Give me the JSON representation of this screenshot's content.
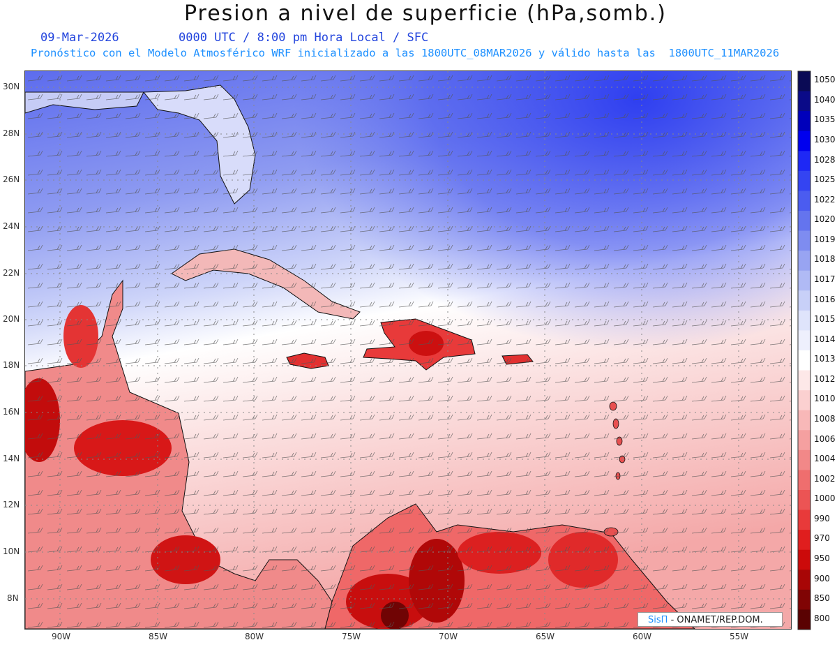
{
  "title": "Presion a nivel de superficie (hPa,somb.)",
  "header": {
    "date": "09-Mar-2026",
    "time_info": "0000 UTC / 8:00 pm Hora Local / SFC",
    "forecast_info": "Pronóstico con el Modelo Atmosférico WRF inicializado a las 1800UTC_08MAR2026 y válido hasta las  1800UTC_11MAR2026"
  },
  "latitude_labels": [
    "30N",
    "28N",
    "26N",
    "24N",
    "22N",
    "20N",
    "18N",
    "16N",
    "14N",
    "12N",
    "10N",
    "8N"
  ],
  "longitude_labels": [
    "90W",
    "85W",
    "80W",
    "75W",
    "70W",
    "65W",
    "60W",
    "55W"
  ],
  "colorbar": {
    "levels": [
      "1050",
      "1040",
      "1035",
      "1030",
      "1028",
      "1025",
      "1022",
      "1020",
      "1019",
      "1018",
      "1017",
      "1016",
      "1015",
      "1014",
      "1013",
      "1012",
      "1010",
      "1008",
      "1006",
      "1004",
      "1002",
      "1000",
      "990",
      "970",
      "950",
      "900",
      "850",
      "800"
    ],
    "colors": [
      "#0a0a55",
      "#0a0a88",
      "#0000bb",
      "#0000ee",
      "#1e28f5",
      "#3444f2",
      "#4b5cf0",
      "#6474ee",
      "#7e8cf0",
      "#98a4f2",
      "#b0baf5",
      "#c8d0f8",
      "#dfe4fb",
      "#eef0fd",
      "#ffffff",
      "#fde8e8",
      "#fbd0d0",
      "#f8b8b8",
      "#f5a0a0",
      "#f28888",
      "#ef6e6e",
      "#ec5454",
      "#e83a3a",
      "#e01e1e",
      "#cc0a0a",
      "#a80606",
      "#800404",
      "#5a0202"
    ]
  },
  "credit": {
    "sis": "SisΠ",
    "org": "- ONAMET/REP.DOM."
  }
}
